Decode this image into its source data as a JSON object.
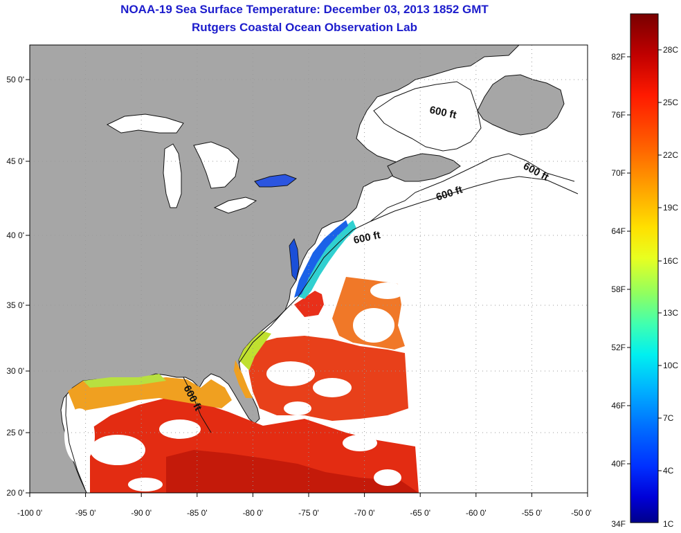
{
  "title": "NOAA-19 Sea Surface Temperature:  December 03, 2013 1852 GMT",
  "subtitle": "Rutgers Coastal Ocean Observation Lab",
  "map": {
    "lon_range": [
      -100,
      -50
    ],
    "lat_range": [
      20,
      52.5
    ],
    "x_ticks": [
      "-100 0'",
      "-95 0'",
      "-90 0'",
      "-85 0'",
      "-80 0'",
      "-75 0'",
      "-70 0'",
      "-65 0'",
      "-60 0'",
      "-55 0'",
      "-50 0'"
    ],
    "y_ticks": [
      "50 0'",
      "45 0'",
      "40 0'",
      "35 0'",
      "30 0'",
      "25 0'",
      "20 0'"
    ],
    "contour_label": "600 ft",
    "land_color": "#a6a6a6",
    "ocean_nodata_color": "#ffffff",
    "grid": "dotted"
  },
  "colorbar": {
    "fahrenheit_labels": [
      "82F",
      "76F",
      "70F",
      "64F",
      "58F",
      "52F",
      "46F",
      "40F",
      "34F"
    ],
    "celsius_labels": [
      "28C",
      "25C",
      "22C",
      "19C",
      "16C",
      "13C",
      "10C",
      "7C",
      "4C",
      "1C"
    ],
    "colors_top_to_bottom": [
      "#7a0000",
      "#c80000",
      "#ff2a00",
      "#ff6a00",
      "#ffa000",
      "#ffd800",
      "#f0ff10",
      "#a8ff50",
      "#50ffa8",
      "#10f0f0",
      "#00b8ff",
      "#0070ff",
      "#0030ff",
      "#0000e0",
      "#000090"
    ]
  }
}
